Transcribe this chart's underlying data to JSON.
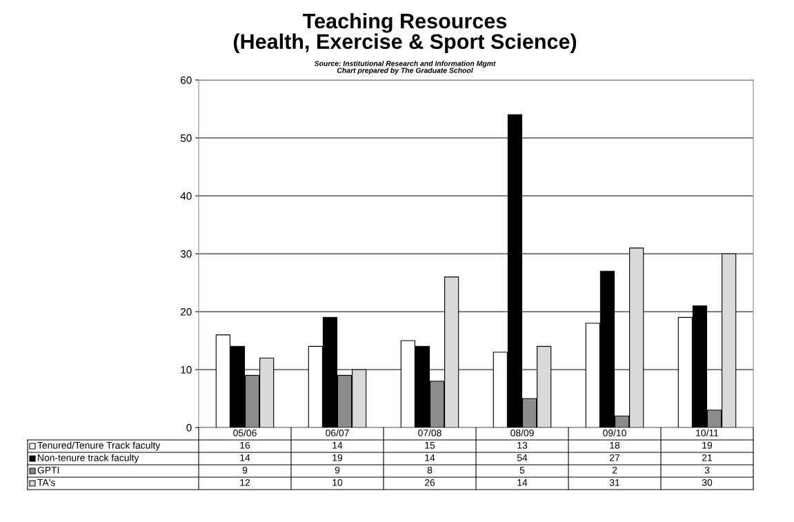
{
  "chart_data": {
    "type": "bar",
    "title": "Teaching Resources\n(Health, Exercise & Sport Science)",
    "subtitle": "Source: Institutional Research and Information Mgmt",
    "annotations": [
      "Chart prepared by The Graduate School"
    ],
    "categories": [
      "05/06",
      "06/07",
      "07/08",
      "08/09",
      "09/10",
      "10/11"
    ],
    "series": [
      {
        "name": "Tenured/Tenure Track faculty",
        "color": "#ffffff",
        "values": [
          16,
          14,
          15,
          13,
          18,
          19
        ]
      },
      {
        "name": "Non-tenure track faculty",
        "color": "#000000",
        "values": [
          14,
          19,
          14,
          54,
          27,
          21
        ]
      },
      {
        "name": "GPTI",
        "color": "#8c8c8c",
        "values": [
          9,
          9,
          8,
          5,
          2,
          3
        ]
      },
      {
        "name": "TA's",
        "color": "#d9d9d9",
        "values": [
          12,
          10,
          26,
          14,
          31,
          30
        ]
      }
    ],
    "ylim": [
      0,
      60
    ],
    "yticks": [
      0,
      10,
      20,
      30,
      40,
      50,
      60
    ],
    "grid": "y",
    "legend": "bottom",
    "data_labels": true
  }
}
